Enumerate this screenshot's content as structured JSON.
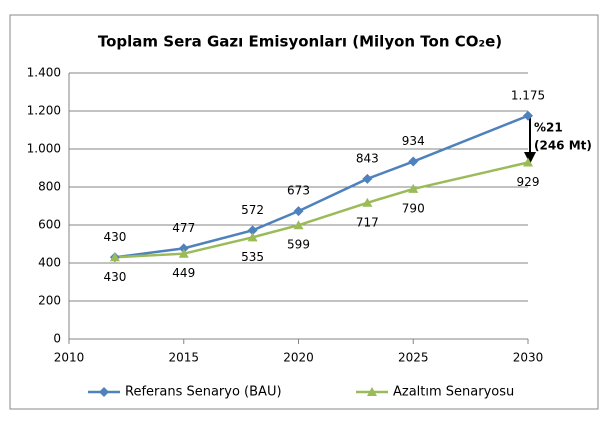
{
  "chart_data": {
    "type": "line",
    "title": "Toplam Sera Gazı Emisyonları (Milyon Ton CO₂e)",
    "x": [
      2012,
      2015,
      2018,
      2020,
      2023,
      2025,
      2030
    ],
    "series": [
      {
        "name": "Referans Senaryo (BAU)",
        "color": "#4f81bd",
        "marker": "diamond",
        "values": [
          430,
          477,
          572,
          673,
          843,
          934,
          1175
        ],
        "value_labels": [
          "430",
          "477",
          "572",
          "673",
          "843",
          "934",
          "1.175"
        ]
      },
      {
        "name": "Azaltım Senaryosu",
        "color": "#9bbb59",
        "marker": "triangle",
        "values": [
          430,
          449,
          535,
          599,
          717,
          790,
          929
        ],
        "value_labels": [
          "430",
          "449",
          "535",
          "599",
          "717",
          "790",
          "929"
        ]
      }
    ],
    "xlim": [
      2010,
      2030
    ],
    "xticks": [
      2010,
      2015,
      2020,
      2025,
      2030
    ],
    "ylim": [
      0,
      1400
    ],
    "yticks": [
      0,
      200,
      400,
      600,
      800,
      {
        "value": 1000,
        "label": "1.000"
      },
      {
        "value": 1200,
        "label": "1.200"
      },
      {
        "value": 1400,
        "label": "1.400"
      }
    ],
    "grid": true,
    "legend": "bottom",
    "annotations": [
      "%21",
      "(246 Mt)"
    ]
  }
}
